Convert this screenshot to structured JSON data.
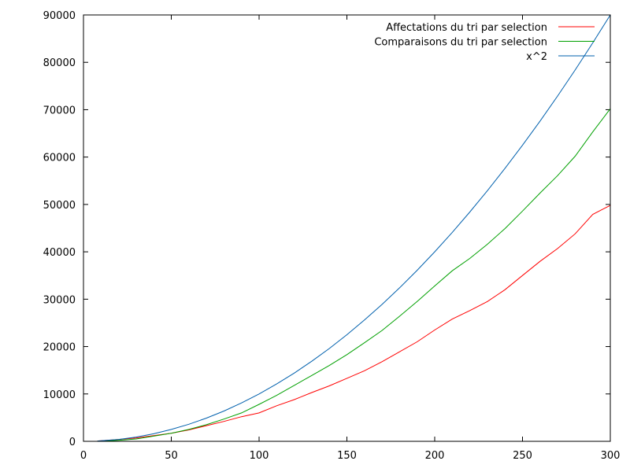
{
  "chart_data": {
    "type": "line",
    "title": "",
    "xlabel": "",
    "ylabel": "",
    "xlim": [
      0,
      300
    ],
    "ylim": [
      0,
      90000
    ],
    "grid": false,
    "legend": "top-right",
    "x_ticks": [
      "0",
      "50",
      "100",
      "150",
      "200",
      "250",
      "300"
    ],
    "y_ticks": [
      "0",
      "10000",
      "20000",
      "30000",
      "40000",
      "50000",
      "60000",
      "70000",
      "80000",
      "90000"
    ],
    "x": [
      8,
      20,
      30,
      40,
      50,
      60,
      70,
      80,
      90,
      100,
      110,
      120,
      130,
      140,
      150,
      160,
      170,
      180,
      190,
      200,
      210,
      220,
      230,
      240,
      250,
      260,
      270,
      280,
      290,
      300
    ],
    "series": [
      {
        "name": "Affectations du tri par selection",
        "color": "#ff0000",
        "values": [
          60,
          400,
          700,
          1200,
          1700,
          2400,
          3300,
          4200,
          5200,
          6000,
          7500,
          8800,
          10300,
          11700,
          13300,
          14900,
          16800,
          18900,
          21000,
          23500,
          25800,
          27600,
          29500,
          32000,
          35000,
          38000,
          40700,
          43800,
          47900,
          49800
        ]
      },
      {
        "name": "Comparaisons du tri par selection",
        "color": "#00a000",
        "values": [
          30,
          200,
          500,
          1100,
          1700,
          2500,
          3500,
          4700,
          6000,
          7800,
          9700,
          11800,
          13900,
          16000,
          18300,
          20800,
          23400,
          26400,
          29500,
          32800,
          36000,
          38600,
          41600,
          44900,
          48600,
          52400,
          56100,
          60200,
          65300,
          70200
        ]
      },
      {
        "name": "x^2",
        "color": "#0060ad",
        "values": [
          64,
          400,
          900,
          1600,
          2500,
          3600,
          4900,
          6400,
          8100,
          10000,
          12100,
          14400,
          16900,
          19600,
          22500,
          25600,
          28900,
          32400,
          36100,
          40000,
          44100,
          48400,
          52900,
          57600,
          62500,
          67600,
          72900,
          78400,
          84100,
          90000
        ]
      }
    ]
  }
}
